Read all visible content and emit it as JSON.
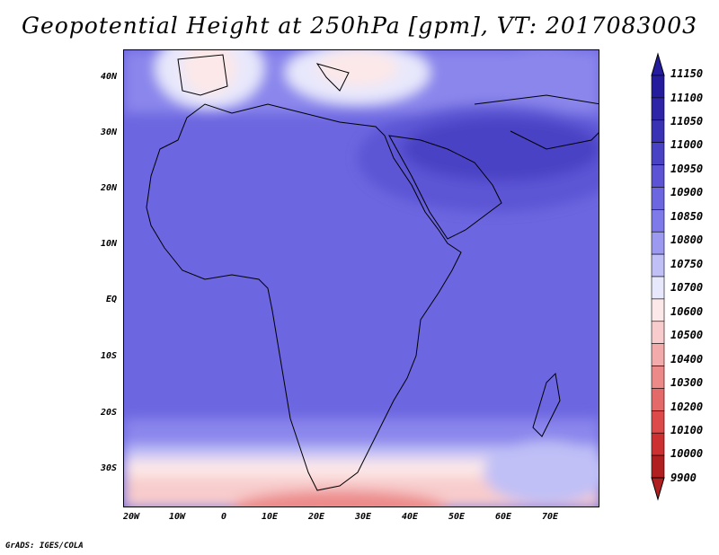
{
  "title": "Geopotential Height at 250hPa [gpm], VT: 2017083003",
  "credit": "GrADS: IGES/COLA",
  "axes": {
    "lat_labels": [
      "40N",
      "30N",
      "20N",
      "10N",
      "EQ",
      "10S",
      "20S",
      "30S"
    ],
    "lon_labels": [
      "20W",
      "10W",
      "0",
      "10E",
      "20E",
      "30E",
      "40E",
      "50E",
      "60E",
      "70E"
    ]
  },
  "colorbar": {
    "levels": [
      "11150",
      "11100",
      "11050",
      "11000",
      "10950",
      "10900",
      "10850",
      "10800",
      "10750",
      "10700",
      "10600",
      "10500",
      "10400",
      "10300",
      "10200",
      "10100",
      "10000",
      "9900"
    ],
    "colors": [
      "#241c9c",
      "#2e24a8",
      "#3a32b4",
      "#4a42c4",
      "#5c54d4",
      "#6c66e0",
      "#7e7aea",
      "#9c9af0",
      "#c0c0f6",
      "#e8e8fc",
      "#fce8e8",
      "#f8cccc",
      "#f2aaaa",
      "#ec8a8a",
      "#e46a6a",
      "#dc4a4a",
      "#cc3030",
      "#b02020"
    ]
  }
}
